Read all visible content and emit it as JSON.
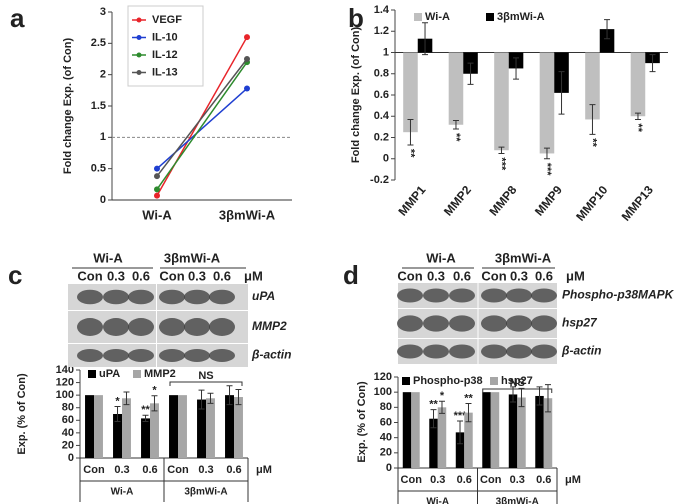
{
  "chart_data": [
    {
      "type": "line",
      "label": "a",
      "y_label": "Fold change Exp. (of Con)",
      "categories": [
        "Wi-A",
        "3βmWi-A"
      ],
      "series": [
        {
          "name": "VEGF",
          "color": "#e8242a",
          "values": [
            0.07,
            2.6
          ]
        },
        {
          "name": "IL-10",
          "color": "#1f3fd1",
          "values": [
            0.5,
            1.78
          ]
        },
        {
          "name": "IL-12",
          "color": "#2e8b2e",
          "values": [
            0.17,
            2.2
          ]
        },
        {
          "name": "IL-13",
          "color": "#555555",
          "values": [
            0.38,
            2.25
          ]
        }
      ],
      "reference_line": 1,
      "ylim": [
        0,
        3
      ],
      "yticks": [
        0,
        0.5,
        1,
        1.5,
        2,
        2.5,
        3
      ]
    },
    {
      "type": "bar",
      "label": "b",
      "y_label": "Fold change Exp. (of Con)",
      "categories": [
        "MMP1",
        "MMP2",
        "MMP8",
        "MMP9",
        "MMP10",
        "MMP13"
      ],
      "baseline": 1,
      "series": [
        {
          "name": "Wi-A",
          "color": "#bfbfbf",
          "values": [
            0.25,
            0.32,
            0.08,
            0.05,
            0.37,
            0.4
          ],
          "errors": [
            0.12,
            0.04,
            0.03,
            0.05,
            0.14,
            0.03
          ],
          "significance": [
            "**",
            "**",
            "***",
            "***",
            "**",
            "**"
          ]
        },
        {
          "name": "3βmWi-A",
          "color": "#000000",
          "values": [
            1.13,
            0.8,
            0.85,
            0.62,
            1.22,
            0.9
          ],
          "errors": [
            0.15,
            0.1,
            0.1,
            0.2,
            0.09,
            0.08
          ]
        }
      ],
      "ylim": [
        -0.2,
        1.4
      ],
      "yticks": [
        -0.2,
        0,
        0.2,
        0.4,
        0.6,
        0.8,
        1,
        1.2,
        1.4
      ]
    },
    {
      "type": "bar",
      "label": "c",
      "y_label": "Exp. (% of Con)",
      "blot": {
        "groups": [
          "Wi-A",
          "3βmWi-A"
        ],
        "lanes": [
          "Con",
          "0.3",
          "0.6",
          "Con",
          "0.3",
          "0.6"
        ],
        "unit": "μM",
        "rows": [
          "uPA",
          "MMP2",
          "β-actin"
        ]
      },
      "categories": [
        "Con",
        "0.3",
        "0.6",
        "Con",
        "0.3",
        "0.6"
      ],
      "groups": [
        "Wi-A",
        "3βmWi-A"
      ],
      "x_unit": "μM",
      "annotation": "NS",
      "series": [
        {
          "name": "uPA",
          "color": "#000000",
          "values": [
            100,
            70,
            63,
            100,
            93,
            100
          ],
          "errors": [
            null,
            12,
            5,
            null,
            15,
            15
          ],
          "significance": [
            null,
            "*",
            "**",
            null,
            null,
            null
          ]
        },
        {
          "name": "MMP2",
          "color": "#a6a6a6",
          "values": [
            100,
            95,
            87,
            100,
            95,
            97
          ],
          "errors": [
            null,
            10,
            12,
            null,
            8,
            12
          ],
          "significance": [
            null,
            null,
            "*",
            null,
            null,
            null
          ]
        }
      ],
      "ylim": [
        0,
        140
      ],
      "yticks": [
        0,
        20,
        40,
        60,
        80,
        100,
        120,
        140
      ]
    },
    {
      "type": "bar",
      "label": "d",
      "y_label": "Exp. (% of Con)",
      "blot": {
        "groups": [
          "Wi-A",
          "3βmWi-A"
        ],
        "lanes": [
          "Con",
          "0.3",
          "0.6",
          "Con",
          "0.3",
          "0.6"
        ],
        "unit": "μM",
        "rows": [
          "Phospho-p38MAPK",
          "hsp27",
          "β-actin"
        ]
      },
      "categories": [
        "Con",
        "0.3",
        "0.6",
        "Con",
        "0.3",
        "0.6"
      ],
      "groups": [
        "Wi-A",
        "3βmWi-A"
      ],
      "x_unit": "μM",
      "annotation": "NS",
      "series": [
        {
          "name": "Phospho-p38",
          "color": "#000000",
          "values": [
            100,
            65,
            47,
            100,
            97,
            95
          ],
          "errors": [
            null,
            12,
            15,
            null,
            10,
            12
          ],
          "significance": [
            null,
            "**",
            "***",
            null,
            null,
            null
          ]
        },
        {
          "name": "hsp27",
          "color": "#a6a6a6",
          "values": [
            100,
            80,
            73,
            100,
            93,
            92
          ],
          "errors": [
            null,
            8,
            12,
            null,
            12,
            18
          ],
          "significance": [
            null,
            "*",
            "**",
            null,
            null,
            null
          ]
        }
      ],
      "ylim": [
        0,
        120
      ],
      "yticks": [
        0,
        20,
        40,
        60,
        80,
        100,
        120
      ]
    }
  ]
}
